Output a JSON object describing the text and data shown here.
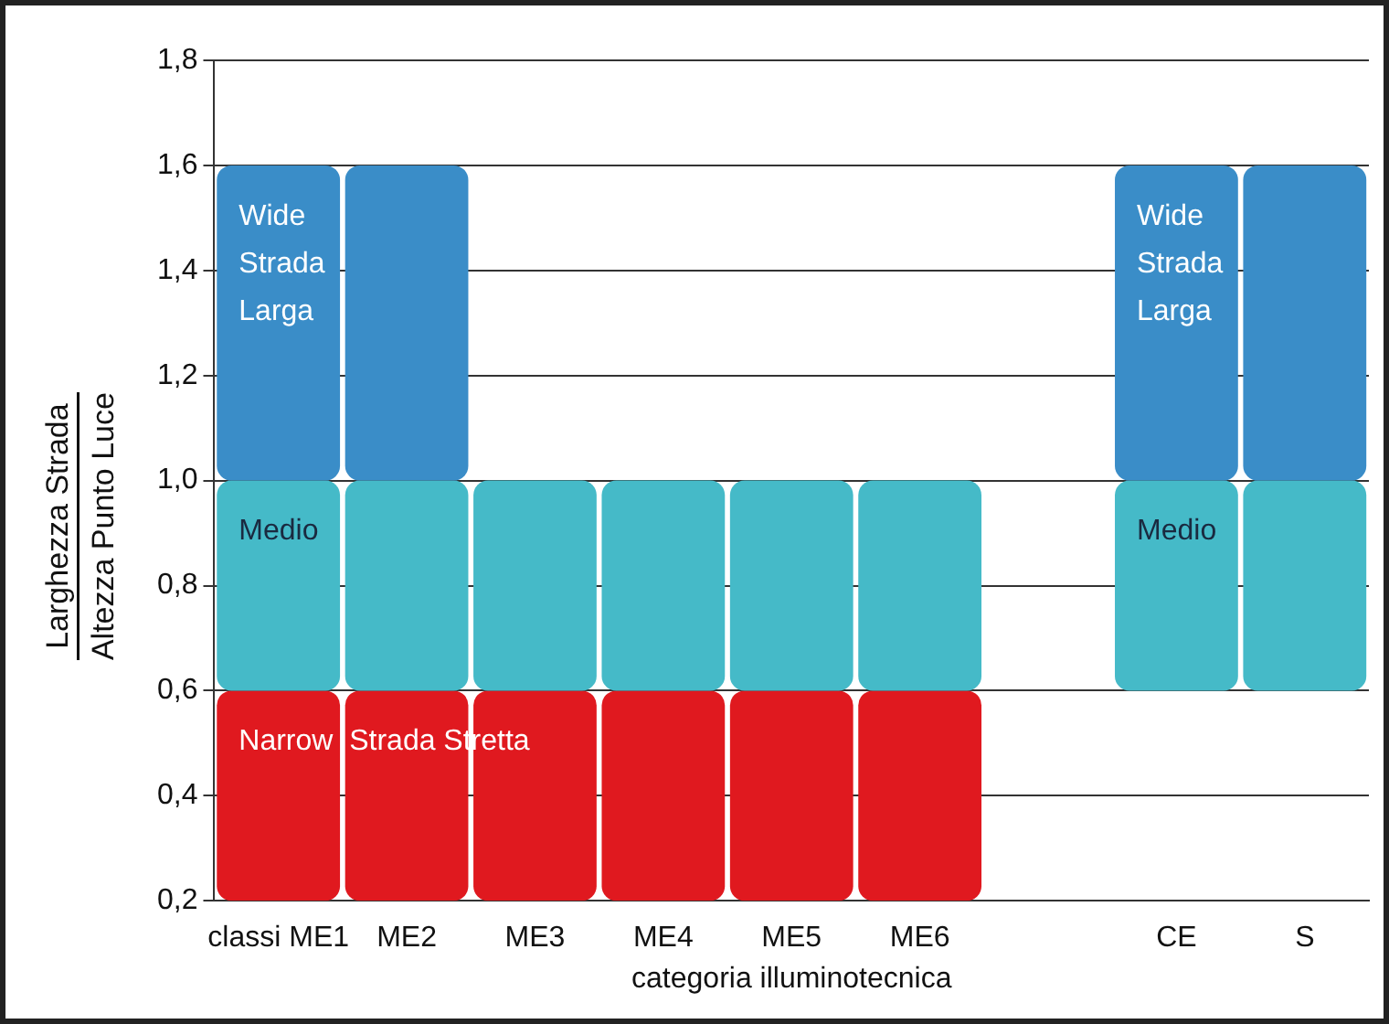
{
  "chart_data": {
    "type": "bar",
    "xlabel": "categoria illuminotecnica",
    "ylabel": "Larghezza Strada\nAltezza Punto Luce",
    "categories": [
      "classi ME1",
      "ME2",
      "ME3",
      "ME4",
      "ME5",
      "ME6",
      null,
      "CE",
      "S"
    ],
    "series": [
      {
        "name": "Wide\nStrada\nLarga",
        "color": "#3a8dc8",
        "base": [
          1.0,
          1.0,
          null,
          null,
          null,
          null,
          null,
          null,
          null
        ],
        "values": [
          0.6,
          0.6,
          null,
          null,
          null,
          null,
          null,
          null,
          null
        ]
      },
      {
        "name": "Medio",
        "color": "#45bac8",
        "base": [
          0.6,
          0.6,
          0.6,
          0.6,
          0.6,
          0.6,
          null,
          null,
          null
        ],
        "values": [
          0.4,
          0.4,
          0.4,
          0.4,
          0.4,
          0.4,
          null,
          null,
          null
        ]
      },
      {
        "name": "Narrow  Strada Stretta",
        "color": "#e0191f",
        "base": [
          0.2,
          0.2,
          0.2,
          0.2,
          0.2,
          0.2,
          null,
          null,
          null
        ],
        "values": [
          0.4,
          0.4,
          0.4,
          0.4,
          0.4,
          0.4,
          null,
          null,
          null
        ]
      },
      {
        "name": "Wide\nStrada\nLarga",
        "color": "#3a8dc8",
        "base": [
          null,
          null,
          null,
          null,
          null,
          null,
          null,
          1.0,
          1.0
        ],
        "values": [
          null,
          null,
          null,
          null,
          null,
          null,
          null,
          0.6,
          0.6
        ]
      },
      {
        "name": "Medio",
        "color": "#45bac8",
        "base": [
          null,
          null,
          null,
          null,
          null,
          null,
          null,
          0.6,
          0.6
        ],
        "values": [
          null,
          null,
          null,
          null,
          null,
          null,
          null,
          0.4,
          0.4
        ]
      }
    ],
    "ylim": [
      0.2,
      1.8
    ],
    "yticks": [
      {
        "value": 0.2,
        "label": "0,2"
      },
      {
        "value": 0.4,
        "label": "0,4"
      },
      {
        "value": 0.6,
        "label": "0,6"
      },
      {
        "value": 0.8,
        "label": "0,8"
      },
      {
        "value": 1.0,
        "label": "1,0"
      },
      {
        "value": 1.2,
        "label": "1,2"
      },
      {
        "value": 1.4,
        "label": "1,4"
      },
      {
        "value": 1.6,
        "label": "1,6"
      },
      {
        "value": 1.8,
        "label": "1,8"
      }
    ],
    "grid": "y",
    "legend": false
  }
}
